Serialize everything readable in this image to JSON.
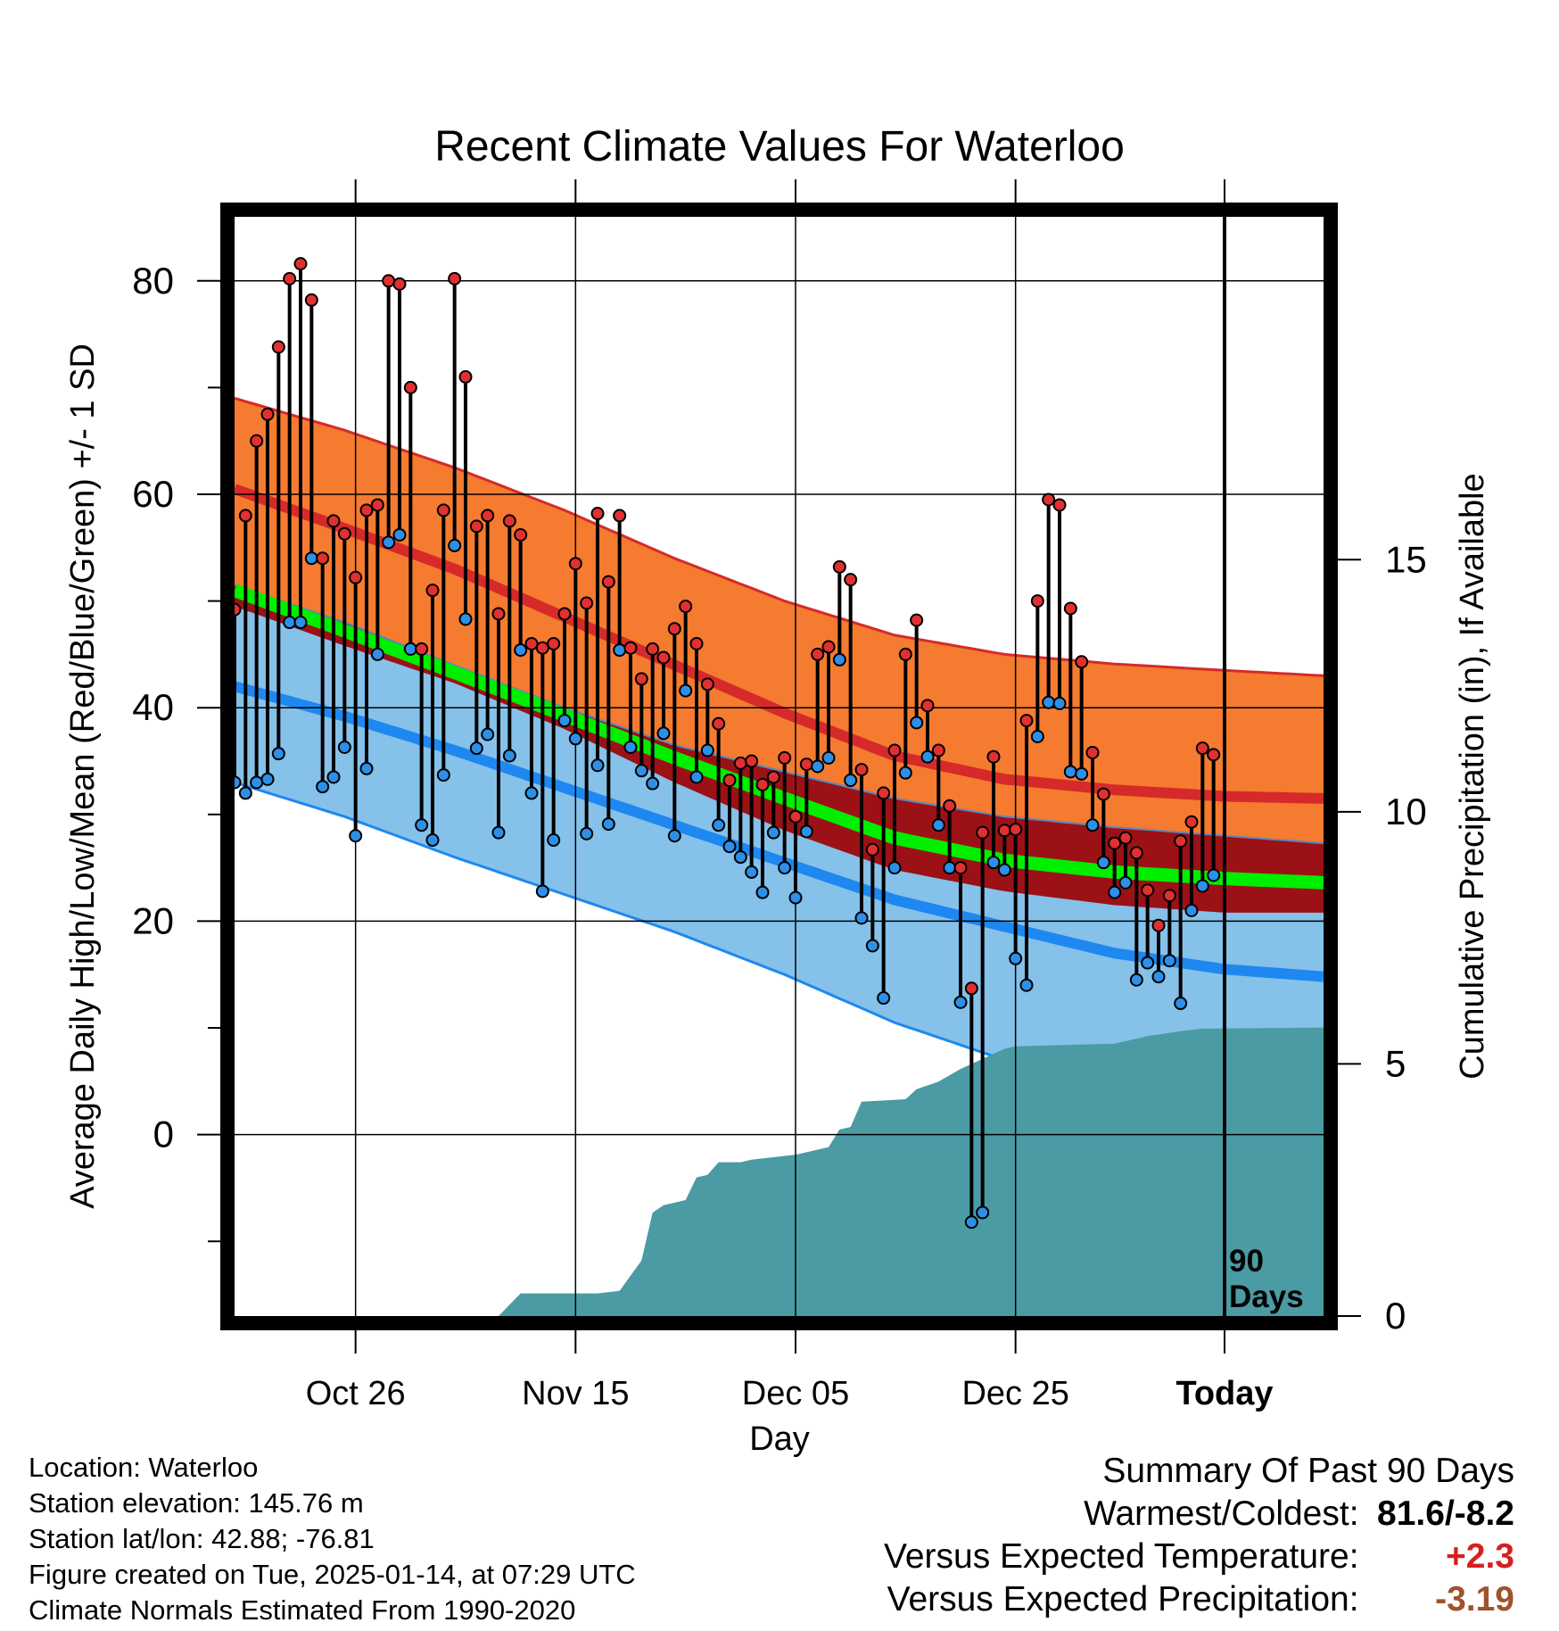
{
  "chart_data": {
    "type": "line",
    "title": "Recent Climate Values For Waterloo",
    "xlabel": "Day",
    "ylabel": "Average Daily High/Low/Mean (Red/Blue/Green) +/- 1 SD",
    "y2label": "Cumulative Precipitation (in), If Available",
    "x_range_days": [
      -90,
      9
    ],
    "ylim": [
      -17,
      86
    ],
    "y_ticks": [
      0,
      20,
      40,
      60,
      80
    ],
    "y2lim": [
      0,
      21.8
    ],
    "y2_ticks": [
      0,
      5,
      10,
      15
    ],
    "x_ticks": [
      {
        "day": -79,
        "label": "Oct 26"
      },
      {
        "day": -59,
        "label": "Nov 15"
      },
      {
        "day": -39,
        "label": "Dec 05"
      },
      {
        "day": -19,
        "label": "Dec 25"
      },
      {
        "day": 0,
        "label": "Today"
      }
    ],
    "today_marker_label": "90 Days",
    "colors": {
      "high_band": "#F47B2F",
      "high_mean": "#D62A2A",
      "mean_band": "#9B1116",
      "mean_line": "#00EE00",
      "low_band": "#85C1E9",
      "low_mean": "#1E88F0",
      "precip": "#4A9BA4",
      "high_point": "#E03030",
      "low_point": "#2E8FE6"
    },
    "normals": {
      "days": [
        -90,
        -80,
        -70,
        -60,
        -50,
        -40,
        -30,
        -20,
        -10,
        0,
        9
      ],
      "high_upper": [
        69.0,
        66.0,
        62.5,
        58.5,
        54.0,
        50.0,
        46.8,
        45.0,
        44.1,
        43.5,
        43.0
      ],
      "high_mean": [
        60.5,
        56.8,
        53.0,
        48.5,
        44.0,
        39.5,
        35.5,
        33.3,
        32.3,
        31.7,
        31.5
      ],
      "high_lower": [
        51.5,
        48.0,
        44.0,
        40.0,
        36.5,
        34.0,
        31.5,
        29.8,
        28.8,
        28.0,
        27.3
      ],
      "mean_line": [
        51.0,
        47.2,
        43.3,
        39.3,
        35.3,
        31.5,
        27.8,
        25.7,
        24.6,
        24.0,
        23.6
      ],
      "mean_lower": [
        49.5,
        45.8,
        42.3,
        38.0,
        33.0,
        28.5,
        24.8,
        22.8,
        21.5,
        20.8,
        20.8
      ],
      "low_mean": [
        42.0,
        39.2,
        36.0,
        32.5,
        29.0,
        25.5,
        22.0,
        19.5,
        17.0,
        15.5,
        14.8
      ],
      "low_lower": [
        33.0,
        29.8,
        26.0,
        22.5,
        19.0,
        15.0,
        10.5,
        7.0,
        5.0,
        3.8,
        3.2
      ]
    },
    "series": [
      {
        "name": "High",
        "values": [
          49.2,
          58,
          65,
          67.5,
          73.8,
          80.2,
          81.6,
          78.2,
          54,
          57.5,
          56.3,
          52.2,
          58.5,
          59,
          80,
          79.7,
          70,
          45.5,
          51,
          58.5,
          80.2,
          71,
          57,
          58,
          48.8,
          57.5,
          56.2,
          46,
          45.6,
          46,
          48.8,
          53.5,
          49.8,
          58.2,
          51.8,
          58,
          45.6,
          42.7,
          45.5,
          44.7,
          47.4,
          49.5,
          46,
          42.2,
          38.5,
          33.2,
          34.8,
          35,
          32.8,
          33.5,
          35.3,
          29.8,
          34.7,
          45,
          45.7,
          53.2,
          52,
          34.2,
          26.7,
          32,
          36,
          45,
          48.2,
          40.2,
          36,
          30.8,
          25,
          13.7,
          28.3,
          35.4,
          28.5,
          28.6,
          38.8,
          50,
          59.5,
          59,
          49.3,
          44.3,
          35.8,
          31.9,
          27.3,
          27.8,
          26.4,
          22.9,
          19.6,
          22.4,
          27.5,
          29.3,
          36.2,
          35.6
        ]
      },
      {
        "name": "Low",
        "values": [
          33,
          32,
          33,
          33.3,
          35.7,
          48,
          48,
          54,
          32.6,
          33.5,
          36.3,
          28,
          34.3,
          45,
          55.5,
          56.2,
          45.5,
          29,
          27.6,
          33.7,
          55.2,
          48.3,
          36.2,
          37.5,
          28.3,
          35.5,
          45.4,
          32,
          22.8,
          27.6,
          38.8,
          37.1,
          28.2,
          34.6,
          29.1,
          45.4,
          36.3,
          34.1,
          32.9,
          37.6,
          28,
          41.6,
          33.5,
          36,
          29,
          27,
          26,
          24.6,
          22.7,
          28.3,
          25,
          22.2,
          28.4,
          34.5,
          35.3,
          44.5,
          33.2,
          20.3,
          17.7,
          12.8,
          25,
          33.9,
          38.6,
          35.4,
          29,
          25,
          12.4,
          -8.2,
          -7.3,
          25.5,
          24.8,
          16.5,
          14,
          37.3,
          40.5,
          40.4,
          34,
          33.8,
          29,
          25.5,
          22.7,
          23.6,
          14.5,
          16.1,
          14.8,
          16.3,
          12.3,
          21,
          23.3,
          24.3
        ]
      },
      {
        "name": "Cumulative Precipitation",
        "cum": [
          [
            -90,
            0
          ],
          [
            -66,
            0
          ],
          [
            -64,
            0.45
          ],
          [
            -57,
            0.45
          ],
          [
            -55,
            0.5
          ],
          [
            -53,
            1.1
          ],
          [
            -52,
            2.05
          ],
          [
            -51,
            2.2
          ],
          [
            -49,
            2.3
          ],
          [
            -48,
            2.75
          ],
          [
            -47,
            2.8
          ],
          [
            -46,
            3.05
          ],
          [
            -44,
            3.05
          ],
          [
            -43,
            3.1
          ],
          [
            -39,
            3.2
          ],
          [
            -37,
            3.3
          ],
          [
            -36,
            3.35
          ],
          [
            -35,
            3.7
          ],
          [
            -34,
            3.75
          ],
          [
            -33,
            4.25
          ],
          [
            -29,
            4.3
          ],
          [
            -28,
            4.5
          ],
          [
            -26,
            4.65
          ],
          [
            -24,
            4.9
          ],
          [
            -22,
            5.1
          ],
          [
            -20,
            5.3
          ],
          [
            -19,
            5.35
          ],
          [
            -10,
            5.4
          ],
          [
            -7,
            5.55
          ],
          [
            -4,
            5.65
          ],
          [
            -2,
            5.7
          ],
          [
            9,
            5.72
          ]
        ]
      }
    ]
  },
  "info": {
    "location": "Location: Waterloo",
    "elevation": "Station elevation: 145.76 m",
    "latlon": "Station lat/lon: 42.88; -76.81",
    "created": "Figure created on Tue, 2025-01-14, at 07:29 UTC",
    "normals": "Climate Normals Estimated From 1990-2020"
  },
  "summary": {
    "title": "Summary Of Past 90 Days",
    "warm_cold_label": "Warmest/Coldest:",
    "warm_cold_value": "81.6/-8.2",
    "temp_label": "Versus Expected Temperature:",
    "temp_value": "+2.3",
    "temp_color": "#D62020",
    "precip_label": "Versus Expected Precipitation:",
    "precip_value": "-3.19",
    "precip_color": "#A0522D"
  }
}
